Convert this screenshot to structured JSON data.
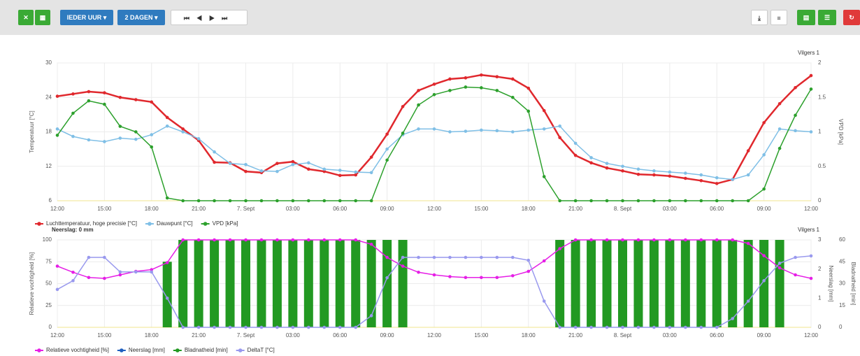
{
  "toolbar": {
    "interval": "IEDER UUR",
    "range": "2 DAGEN"
  },
  "chart_data": [
    {
      "type": "line",
      "title": "Vilgers 1",
      "ylabel": "Temperatuur [°C]",
      "y2label": "VPD [kPa]",
      "x": [
        0,
        1,
        2,
        3,
        4,
        5,
        6,
        7,
        8,
        9,
        10,
        11,
        12,
        13,
        14,
        15,
        16,
        17,
        18,
        19,
        20,
        21,
        22,
        23,
        24,
        25,
        26,
        27,
        28,
        29,
        30,
        31,
        32,
        33,
        34,
        35,
        36,
        37,
        38,
        39,
        40,
        41,
        42,
        43,
        44,
        45,
        46,
        47,
        48
      ],
      "xlim": [
        0,
        48
      ],
      "xticks": [
        {
          "value": 0,
          "label": "12:00"
        },
        {
          "value": 3,
          "label": "15:00"
        },
        {
          "value": 6,
          "label": "18:00"
        },
        {
          "value": 9,
          "label": "21:00"
        },
        {
          "value": 12,
          "label": "7. Sept"
        },
        {
          "value": 15,
          "label": "03:00"
        },
        {
          "value": 18,
          "label": "06:00"
        },
        {
          "value": 21,
          "label": "09:00"
        },
        {
          "value": 24,
          "label": "12:00"
        },
        {
          "value": 27,
          "label": "15:00"
        },
        {
          "value": 30,
          "label": "18:00"
        },
        {
          "value": 33,
          "label": "21:00"
        },
        {
          "value": 36,
          "label": "8. Sept"
        },
        {
          "value": 39,
          "label": "03:00"
        },
        {
          "value": 42,
          "label": "06:00"
        },
        {
          "value": 45,
          "label": "09:00"
        },
        {
          "value": 48,
          "label": "12:00"
        }
      ],
      "ylim": [
        6,
        30
      ],
      "yticks": [
        6,
        12,
        18,
        24,
        30
      ],
      "y2lim": [
        0,
        2
      ],
      "y2ticks": [
        0,
        0.5,
        1,
        1.5,
        2
      ],
      "grid": true,
      "series": [
        {
          "name": "Luchttemperatuur, hoge precisie [°C]",
          "color": "#e0282d",
          "values": [
            24.2,
            24.6,
            25.0,
            24.8,
            24.0,
            23.6,
            23.2,
            20.5,
            18.5,
            16.5,
            12.7,
            12.6,
            11.1,
            10.9,
            12.5,
            12.8,
            11.5,
            11.1,
            10.4,
            10.5,
            13.6,
            17.6,
            22.4,
            25.2,
            26.3,
            27.2,
            27.4,
            27.9,
            27.6,
            27.2,
            25.6,
            21.7,
            17.0,
            13.9,
            12.6,
            11.7,
            11.2,
            10.6,
            10.5,
            10.3,
            9.9,
            9.5,
            9.0,
            9.7,
            14.7,
            19.6,
            22.9,
            25.7,
            27.8
          ]
        },
        {
          "name": "Dauwpunt [°C]",
          "color": "#7fbfe6",
          "values": [
            18.5,
            17.2,
            16.6,
            16.3,
            16.9,
            16.7,
            17.5,
            19.0,
            18.0,
            16.8,
            14.5,
            12.5,
            12.3,
            11.2,
            11.1,
            12.3,
            12.6,
            11.5,
            11.3,
            11.0,
            10.9,
            15.0,
            17.5,
            18.5,
            18.5,
            18.0,
            18.1,
            18.3,
            18.2,
            18.0,
            18.3,
            18.5,
            19.0,
            16.0,
            13.5,
            12.5,
            12.0,
            11.5,
            11.2,
            11.0,
            10.8,
            10.5,
            10.0,
            9.7,
            10.5,
            14.0,
            18.5,
            18.2,
            18.0
          ]
        },
        {
          "name": "VPD [kPa]",
          "color": "#2ca02c",
          "axis": "y2",
          "values": [
            0.95,
            1.27,
            1.45,
            1.4,
            1.08,
            1.0,
            0.78,
            0.04,
            0,
            0,
            0,
            0,
            0,
            0,
            0,
            0,
            0,
            0,
            0,
            0,
            0,
            0.59,
            0.98,
            1.39,
            1.54,
            1.6,
            1.65,
            1.64,
            1.6,
            1.5,
            1.3,
            0.35,
            0,
            0,
            0,
            0,
            0,
            0,
            0,
            0,
            0,
            0,
            0,
            0,
            0,
            0.17,
            0.76,
            1.24,
            1.62
          ]
        }
      ]
    },
    {
      "type": "line",
      "title": "Vilgers 1",
      "subtitle": "Neerslag: 0 mm",
      "ylabel": "Relatieve vochtigheid [%]",
      "y2label": "Neerslag [mm]",
      "y3label": "Bladnatheid [min]",
      "x": [
        0,
        1,
        2,
        3,
        4,
        5,
        6,
        7,
        8,
        9,
        10,
        11,
        12,
        13,
        14,
        15,
        16,
        17,
        18,
        19,
        20,
        21,
        22,
        23,
        24,
        25,
        26,
        27,
        28,
        29,
        30,
        31,
        32,
        33,
        34,
        35,
        36,
        37,
        38,
        39,
        40,
        41,
        42,
        43,
        44,
        45,
        46,
        47,
        48
      ],
      "xlim": [
        0,
        48
      ],
      "xticks": [
        {
          "value": 0,
          "label": "12:00"
        },
        {
          "value": 3,
          "label": "15:00"
        },
        {
          "value": 6,
          "label": "18:00"
        },
        {
          "value": 9,
          "label": "21:00"
        },
        {
          "value": 12,
          "label": "7. Sept"
        },
        {
          "value": 15,
          "label": "03:00"
        },
        {
          "value": 18,
          "label": "06:00"
        },
        {
          "value": 21,
          "label": "09:00"
        },
        {
          "value": 24,
          "label": "12:00"
        },
        {
          "value": 27,
          "label": "15:00"
        },
        {
          "value": 30,
          "label": "18:00"
        },
        {
          "value": 33,
          "label": "21:00"
        },
        {
          "value": 36,
          "label": "8. Sept"
        },
        {
          "value": 39,
          "label": "03:00"
        },
        {
          "value": 42,
          "label": "06:00"
        },
        {
          "value": 45,
          "label": "09:00"
        },
        {
          "value": 48,
          "label": "12:00"
        }
      ],
      "ylim": [
        0,
        100
      ],
      "yticks": [
        0,
        25,
        50,
        75,
        100
      ],
      "y2lim": [
        0,
        3
      ],
      "y2ticks": [
        0,
        1,
        2,
        3
      ],
      "y3lim": [
        0,
        60
      ],
      "y3ticks": [
        0,
        15,
        30,
        45,
        60
      ],
      "grid": true,
      "series": [
        {
          "name": "Relatieve vochtigheid [%]",
          "color": "#e61ee6",
          "values": [
            70,
            63,
            57,
            56,
            60,
            64,
            66,
            74,
            100,
            100,
            100,
            100,
            100,
            100,
            100,
            100,
            100,
            100,
            100,
            100,
            95,
            80,
            70,
            63,
            60,
            58,
            57,
            57,
            57,
            59,
            64,
            76,
            90,
            100,
            100,
            100,
            100,
            100,
            100,
            100,
            100,
            100,
            100,
            100,
            96,
            82,
            68,
            60,
            56
          ]
        },
        {
          "name": "Neerslag [mm]",
          "color": "#1f5fbf",
          "axis": "y2",
          "type": "bar",
          "values": [
            0,
            0,
            0,
            0,
            0,
            0,
            0,
            0,
            0,
            0,
            0,
            0,
            0,
            0,
            0,
            0,
            0,
            0,
            0,
            0,
            0,
            0,
            0,
            0,
            0,
            0,
            0,
            0,
            0,
            0,
            0,
            0,
            0,
            0,
            0,
            0,
            0,
            0,
            0,
            0,
            0,
            0,
            0,
            0,
            0,
            0,
            0,
            0,
            0
          ]
        },
        {
          "name": "Bladnatheid [min]",
          "color": "#229922",
          "axis": "y3",
          "type": "bar",
          "values": [
            0,
            0,
            0,
            0,
            0,
            0,
            0,
            45,
            60,
            60,
            60,
            60,
            60,
            60,
            60,
            60,
            60,
            60,
            60,
            60,
            60,
            60,
            60,
            0,
            0,
            0,
            0,
            0,
            0,
            0,
            0,
            0,
            60,
            60,
            60,
            60,
            60,
            60,
            60,
            60,
            60,
            60,
            60,
            60,
            60,
            60,
            60,
            0,
            0
          ]
        },
        {
          "name": "DeltaT [°C]",
          "color": "#9999ee",
          "axis": "y2",
          "values": [
            1.3,
            1.6,
            2.4,
            2.4,
            1.9,
            1.9,
            1.9,
            1.0,
            0,
            0,
            0,
            0,
            0,
            0,
            0,
            0,
            0,
            0,
            0,
            0,
            0.4,
            1.7,
            2.4,
            2.4,
            2.4,
            2.4,
            2.4,
            2.4,
            2.4,
            2.4,
            2.3,
            0.9,
            0,
            0,
            0,
            0,
            0,
            0,
            0,
            0,
            0,
            0,
            0,
            0.3,
            0.9,
            1.6,
            2.2,
            2.4,
            2.45
          ]
        }
      ]
    }
  ]
}
